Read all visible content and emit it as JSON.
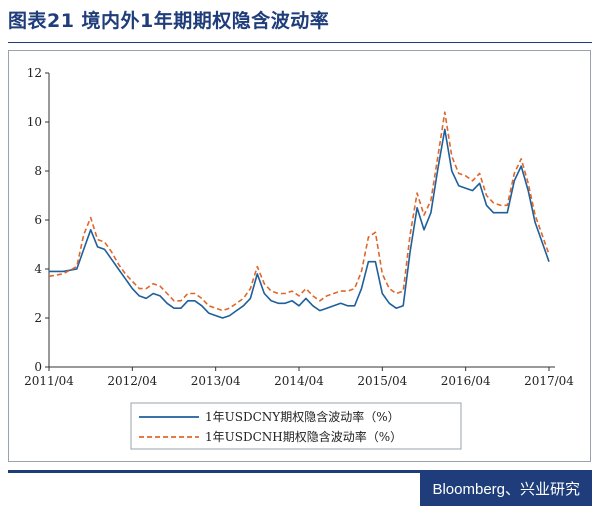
{
  "header": {
    "title": "图表21  境内外1年期期权隐含波动率"
  },
  "source": {
    "label": "Bloomberg、兴业研究"
  },
  "chart_data": {
    "type": "line",
    "xlabel": "",
    "ylabel": "",
    "ylim": [
      0,
      12
    ],
    "yticks": [
      0,
      2,
      4,
      6,
      8,
      10,
      12
    ],
    "xlim": [
      "2011/04",
      "2017/04"
    ],
    "xticks": [
      "2011/04",
      "2012/04",
      "2013/04",
      "2014/04",
      "2015/04",
      "2016/04",
      "2017/04"
    ],
    "grid": false,
    "legend": "bottom",
    "series": [
      {
        "name": "1年USDCNY期权隐含波动率（%）",
        "color": "#1f5f9a",
        "style": "solid",
        "points": [
          [
            "2011/04",
            3.9
          ],
          [
            "2011/06",
            3.9
          ],
          [
            "2011/08",
            4.0
          ],
          [
            "2011/09",
            4.8
          ],
          [
            "2011/10",
            5.6
          ],
          [
            "2011/11",
            4.9
          ],
          [
            "2011/12",
            4.8
          ],
          [
            "2012/01",
            4.4
          ],
          [
            "2012/02",
            4.0
          ],
          [
            "2012/03",
            3.6
          ],
          [
            "2012/04",
            3.2
          ],
          [
            "2012/05",
            2.9
          ],
          [
            "2012/06",
            2.8
          ],
          [
            "2012/07",
            3.0
          ],
          [
            "2012/08",
            2.9
          ],
          [
            "2012/09",
            2.6
          ],
          [
            "2012/10",
            2.4
          ],
          [
            "2012/11",
            2.4
          ],
          [
            "2012/12",
            2.7
          ],
          [
            "2013/01",
            2.7
          ],
          [
            "2013/02",
            2.5
          ],
          [
            "2013/03",
            2.2
          ],
          [
            "2013/04",
            2.1
          ],
          [
            "2013/05",
            2.0
          ],
          [
            "2013/06",
            2.1
          ],
          [
            "2013/07",
            2.3
          ],
          [
            "2013/08",
            2.5
          ],
          [
            "2013/09",
            2.8
          ],
          [
            "2013/10",
            3.8
          ],
          [
            "2013/11",
            3.0
          ],
          [
            "2013/12",
            2.7
          ],
          [
            "2014/01",
            2.6
          ],
          [
            "2014/02",
            2.6
          ],
          [
            "2014/03",
            2.7
          ],
          [
            "2014/04",
            2.5
          ],
          [
            "2014/05",
            2.8
          ],
          [
            "2014/06",
            2.5
          ],
          [
            "2014/07",
            2.3
          ],
          [
            "2014/08",
            2.4
          ],
          [
            "2014/09",
            2.5
          ],
          [
            "2014/10",
            2.6
          ],
          [
            "2014/11",
            2.5
          ],
          [
            "2014/12",
            2.5
          ],
          [
            "2015/01",
            3.2
          ],
          [
            "2015/02",
            4.3
          ],
          [
            "2015/03",
            4.3
          ],
          [
            "2015/04",
            3.0
          ],
          [
            "2015/05",
            2.6
          ],
          [
            "2015/06",
            2.4
          ],
          [
            "2015/07",
            2.5
          ],
          [
            "2015/08",
            4.7
          ],
          [
            "2015/09",
            6.5
          ],
          [
            "2015/10",
            5.6
          ],
          [
            "2015/11",
            6.3
          ],
          [
            "2015/12",
            8.1
          ],
          [
            "2016/01",
            9.7
          ],
          [
            "2016/02",
            8.0
          ],
          [
            "2016/03",
            7.4
          ],
          [
            "2016/04",
            7.3
          ],
          [
            "2016/05",
            7.2
          ],
          [
            "2016/06",
            7.5
          ],
          [
            "2016/07",
            6.6
          ],
          [
            "2016/08",
            6.3
          ],
          [
            "2016/09",
            6.3
          ],
          [
            "2016/10",
            6.3
          ],
          [
            "2016/11",
            7.6
          ],
          [
            "2016/12",
            8.2
          ],
          [
            "2017/01",
            7.2
          ],
          [
            "2017/02",
            5.9
          ],
          [
            "2017/03",
            5.1
          ],
          [
            "2017/04",
            4.3
          ]
        ]
      },
      {
        "name": "1年USDCNH期权隐含波动率（%）",
        "color": "#e0672b",
        "style": "dashed",
        "points": [
          [
            "2011/04",
            3.7
          ],
          [
            "2011/06",
            3.8
          ],
          [
            "2011/08",
            4.1
          ],
          [
            "2011/09",
            5.4
          ],
          [
            "2011/10",
            6.1
          ],
          [
            "2011/11",
            5.2
          ],
          [
            "2011/12",
            5.1
          ],
          [
            "2012/01",
            4.7
          ],
          [
            "2012/02",
            4.2
          ],
          [
            "2012/03",
            3.8
          ],
          [
            "2012/04",
            3.5
          ],
          [
            "2012/05",
            3.2
          ],
          [
            "2012/06",
            3.2
          ],
          [
            "2012/07",
            3.4
          ],
          [
            "2012/08",
            3.3
          ],
          [
            "2012/09",
            3.0
          ],
          [
            "2012/10",
            2.7
          ],
          [
            "2012/11",
            2.7
          ],
          [
            "2012/12",
            3.0
          ],
          [
            "2013/01",
            3.0
          ],
          [
            "2013/02",
            2.8
          ],
          [
            "2013/03",
            2.5
          ],
          [
            "2013/04",
            2.4
          ],
          [
            "2013/05",
            2.3
          ],
          [
            "2013/06",
            2.4
          ],
          [
            "2013/07",
            2.6
          ],
          [
            "2013/08",
            2.8
          ],
          [
            "2013/09",
            3.2
          ],
          [
            "2013/10",
            4.1
          ],
          [
            "2013/11",
            3.4
          ],
          [
            "2013/12",
            3.1
          ],
          [
            "2014/01",
            3.0
          ],
          [
            "2014/02",
            3.0
          ],
          [
            "2014/03",
            3.1
          ],
          [
            "2014/04",
            2.9
          ],
          [
            "2014/05",
            3.2
          ],
          [
            "2014/06",
            2.9
          ],
          [
            "2014/07",
            2.7
          ],
          [
            "2014/08",
            2.9
          ],
          [
            "2014/09",
            3.0
          ],
          [
            "2014/10",
            3.1
          ],
          [
            "2014/11",
            3.1
          ],
          [
            "2014/12",
            3.2
          ],
          [
            "2015/01",
            3.9
          ],
          [
            "2015/02",
            5.3
          ],
          [
            "2015/03",
            5.5
          ],
          [
            "2015/04",
            3.8
          ],
          [
            "2015/05",
            3.2
          ],
          [
            "2015/06",
            3.0
          ],
          [
            "2015/07",
            3.1
          ],
          [
            "2015/08",
            5.4
          ],
          [
            "2015/09",
            7.1
          ],
          [
            "2015/10",
            6.2
          ],
          [
            "2015/11",
            6.8
          ],
          [
            "2015/12",
            8.6
          ],
          [
            "2016/01",
            10.4
          ],
          [
            "2016/02",
            8.6
          ],
          [
            "2016/03",
            7.9
          ],
          [
            "2016/04",
            7.8
          ],
          [
            "2016/05",
            7.6
          ],
          [
            "2016/06",
            7.9
          ],
          [
            "2016/07",
            7.0
          ],
          [
            "2016/08",
            6.7
          ],
          [
            "2016/09",
            6.6
          ],
          [
            "2016/10",
            6.6
          ],
          [
            "2016/11",
            7.9
          ],
          [
            "2016/12",
            8.5
          ],
          [
            "2017/01",
            7.5
          ],
          [
            "2017/02",
            6.2
          ],
          [
            "2017/03",
            5.4
          ],
          [
            "2017/04",
            4.6
          ]
        ]
      }
    ]
  }
}
